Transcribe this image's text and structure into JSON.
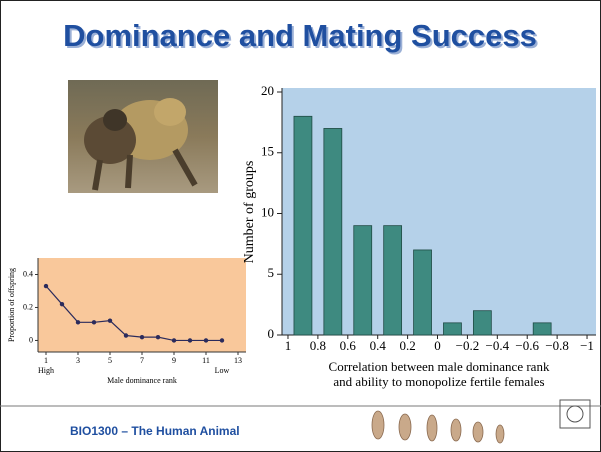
{
  "header": {
    "title": "Dominance and Mating Success"
  },
  "footer": {
    "text": "BIO1300 – The Human Animal"
  },
  "chart_data": [
    {
      "type": "line",
      "x": [
        1,
        2,
        3,
        4,
        5,
        6,
        7,
        8,
        9,
        10,
        11,
        12
      ],
      "series": [
        {
          "values": [
            0.33,
            0.22,
            0.11,
            0.11,
            0.12,
            0.03,
            0.02,
            0.02,
            0,
            0,
            0,
            0
          ],
          "color": "#2b2b5c"
        }
      ],
      "xlim": [
        0.5,
        13.5
      ],
      "ylim": [
        -0.07,
        0.5
      ],
      "xticks": [
        1,
        3,
        5,
        7,
        9,
        11,
        13
      ],
      "yticks": [
        0,
        0.2,
        0.4
      ],
      "xlabel": "Male dominance rank",
      "ylabel": "Proportion of offspring",
      "annotations": [
        "High",
        "Low"
      ],
      "background": "#f9c89b"
    },
    {
      "type": "histogram",
      "bins": [
        1,
        0.8,
        0.6,
        0.4,
        0.2,
        0,
        -0.2,
        -0.4,
        -0.6,
        -0.8,
        -1
      ],
      "values": [
        18,
        17,
        9,
        9,
        7,
        1,
        2,
        0,
        1,
        0
      ],
      "color": "#3e8a80",
      "xlim": [
        1.04,
        -1.06
      ],
      "ylim": [
        0,
        20
      ],
      "xticks": [
        1,
        0.8,
        0.6,
        0.4,
        0.2,
        0,
        {
          "value": -0.2,
          "label": "−0.2"
        },
        {
          "value": -0.4,
          "label": "−0.4"
        },
        {
          "value": -0.6,
          "label": "−0.6"
        },
        {
          "value": -0.8,
          "label": "−0.8"
        },
        {
          "value": -1,
          "label": "−1"
        }
      ],
      "yticks": [
        0,
        5,
        10,
        15,
        20
      ],
      "xlabel": [
        "Correlation between male dominance rank",
        "and ability to monopolize fertile females"
      ],
      "ylabel": "Number of groups",
      "background": "#b5d1e9"
    }
  ]
}
